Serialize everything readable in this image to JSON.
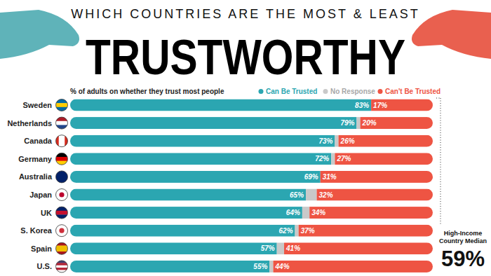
{
  "chart_data": {
    "type": "bar",
    "orientation": "horizontal",
    "stacked": true,
    "data_labels": true,
    "tick_labels": "y",
    "legend": "top",
    "supertitle": "WHICH COUNTRIES ARE THE MOST & LEAST",
    "title": "TRUSTWORTHY",
    "subtitle": "% of adults on whether they trust most people",
    "categories": [
      "Sweden",
      "Netherlands",
      "Canada",
      "Germany",
      "Australia",
      "Japan",
      "UK",
      "S. Korea",
      "Spain",
      "U.S."
    ],
    "xlim": [
      0,
      100
    ],
    "series": [
      {
        "name": "Can Be Trusted",
        "color": "#2ba6b1",
        "values": [
          83,
          79,
          73,
          72,
          69,
          65,
          64,
          62,
          57,
          55
        ],
        "value_labels": [
          "83%",
          "79%",
          "73%",
          "72%",
          "69%",
          "65%",
          "64%",
          "62%",
          "57%",
          "55%"
        ]
      },
      {
        "name": "No Response",
        "color": "#c9c9c9",
        "data_labels": false,
        "values": [
          0,
          1,
          1,
          1,
          0,
          3,
          2,
          1,
          2,
          1
        ]
      },
      {
        "name": "Can't Be Trusted",
        "color": "#ee5443",
        "values": [
          17,
          20,
          26,
          27,
          31,
          32,
          34,
          37,
          41,
          44
        ],
        "value_labels": [
          "17%",
          "20%",
          "26%",
          "27%",
          "31%",
          "32%",
          "34%",
          "37%",
          "41%",
          "44%"
        ]
      }
    ],
    "annotations": [
      {
        "text": "High-Income Country Median",
        "value": 59,
        "value_label": "59%"
      }
    ]
  }
}
